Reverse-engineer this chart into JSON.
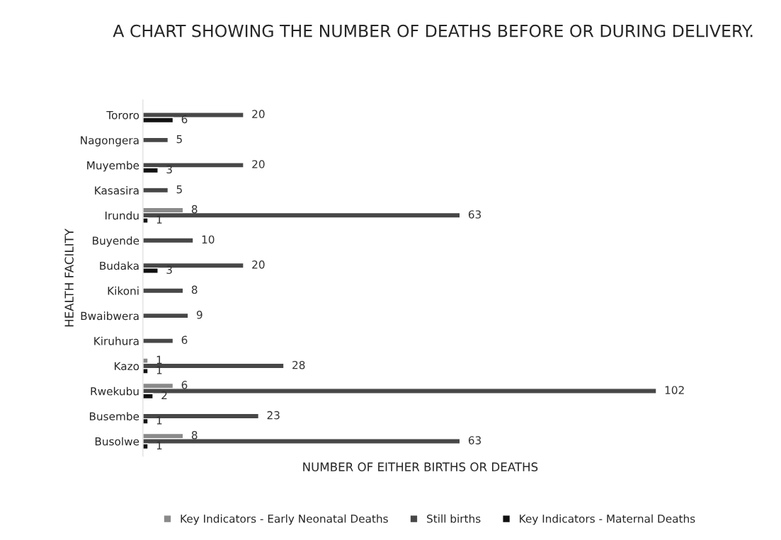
{
  "chart_data": {
    "type": "bar",
    "orientation": "horizontal",
    "title": "A CHART SHOWING THE NUMBER OF DEATHS BEFORE OR DURING DELIVERY.",
    "xlabel": "NUMBER OF EITHER BIRTHS OR DEATHS",
    "ylabel": "HEALTH FACILITY",
    "categories": [
      "Tororo",
      "Nagongera",
      "Muyembe",
      "Kasasira",
      "Irundu",
      "Buyende",
      "Budaka",
      "Kikoni",
      "Bwaibwera",
      "Kiruhura",
      "Kazo",
      "Rwekubu",
      "Busembe",
      "Busolwe"
    ],
    "series": [
      {
        "name": "Key Indicators - Early Neonatal Deaths",
        "color": "#8a8a8a",
        "values": [
          null,
          null,
          null,
          null,
          8,
          null,
          null,
          null,
          null,
          null,
          1,
          6,
          null,
          8
        ]
      },
      {
        "name": "Still births",
        "color": "#474747",
        "values": [
          20,
          5,
          20,
          5,
          63,
          10,
          20,
          8,
          9,
          6,
          28,
          102,
          23,
          63
        ]
      },
      {
        "name": "Key Indicators - Maternal Deaths",
        "color": "#111111",
        "values": [
          6,
          null,
          3,
          null,
          1,
          null,
          3,
          null,
          null,
          null,
          1,
          2,
          1,
          1
        ]
      }
    ],
    "data_labels": true,
    "tick_labels": "y",
    "grid": false,
    "legend": "bottom"
  }
}
